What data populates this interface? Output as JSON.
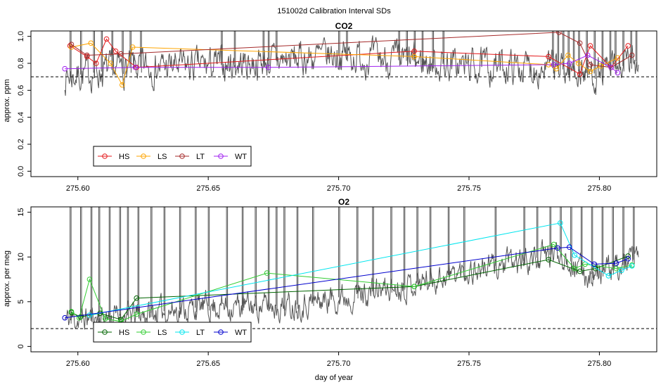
{
  "figure": {
    "suptitle": "151002d   Calibration Interval SDs",
    "xlabel": "day of year"
  },
  "chart_data": [
    {
      "type": "line",
      "title": "CO2",
      "ylabel": "approx. ppm",
      "xlim": [
        275.582,
        275.822
      ],
      "ylim": [
        -0.04,
        1.04
      ],
      "xticks": [
        "275.60",
        "275.65",
        "275.70",
        "275.75",
        "275.80"
      ],
      "xtick_values": [
        275.6,
        275.65,
        275.7,
        275.75,
        275.8
      ],
      "yticks": [
        "0.0",
        "0.2",
        "0.4",
        "0.6",
        "0.8",
        "1.0"
      ],
      "ytick_values": [
        0.0,
        0.2,
        0.4,
        0.6,
        0.8,
        1.0
      ],
      "threshold": 0.7,
      "legend_position": "bottom-left",
      "background_trace": {
        "color": "#555555",
        "seed": 7,
        "base": [
          [
            275.595,
            0.7
          ],
          [
            275.62,
            0.77
          ],
          [
            275.65,
            0.78
          ],
          [
            275.7,
            0.86
          ],
          [
            275.75,
            0.78
          ],
          [
            275.78,
            0.77
          ],
          [
            275.8,
            0.72
          ],
          [
            275.815,
            0.82
          ]
        ],
        "noise": 0.1,
        "spikes": [
          275.597,
          275.601,
          275.606,
          275.609,
          275.613,
          275.617,
          275.62,
          275.624,
          275.655,
          275.66,
          275.671,
          275.673,
          275.676,
          275.7,
          275.703,
          275.723,
          275.726,
          275.729,
          275.732,
          275.736,
          275.74,
          275.782,
          275.784,
          275.786,
          275.788,
          275.79,
          275.792,
          275.795,
          275.798,
          275.801,
          275.804,
          275.806,
          275.809,
          275.812,
          275.814
        ]
      },
      "series": [
        {
          "name": "HS",
          "color": "#e41a1c",
          "x": [
            275.597,
            275.6035,
            275.607,
            275.611,
            275.6145,
            275.6225,
            275.729,
            275.7805,
            275.7925,
            275.7965,
            275.8045,
            275.811
          ],
          "y": [
            0.93,
            0.85,
            0.8,
            0.98,
            0.89,
            0.77,
            0.89,
            0.85,
            0.72,
            0.93,
            0.77,
            0.93
          ]
        },
        {
          "name": "LS",
          "color": "#ffa500",
          "x": [
            275.5975,
            275.605,
            275.6125,
            275.617,
            275.621,
            275.729,
            275.7805,
            275.7835,
            275.788,
            275.792,
            275.7965,
            275.8005,
            275.807
          ],
          "y": [
            0.92,
            0.95,
            0.8,
            0.64,
            0.92,
            0.85,
            0.79,
            0.76,
            0.86,
            0.8,
            0.74,
            0.78,
            0.84
          ]
        },
        {
          "name": "LT",
          "color": "#a52a2a",
          "x": [
            275.5975,
            275.6035,
            275.6165,
            275.7845,
            275.7925,
            275.7965,
            275.8045,
            275.8125
          ],
          "y": [
            0.94,
            0.86,
            0.87,
            1.03,
            0.95,
            0.79,
            0.77,
            0.86
          ]
        },
        {
          "name": "WT",
          "color": "#a020f0",
          "x": [
            275.595,
            275.622,
            275.673,
            275.7825,
            275.7885,
            275.7955,
            275.8045,
            275.807
          ],
          "y": [
            0.76,
            0.77,
            0.77,
            0.79,
            0.8,
            0.86,
            0.77,
            0.73
          ]
        }
      ]
    },
    {
      "type": "line",
      "title": "O2",
      "ylabel": "approx. per meg",
      "xlim": [
        275.582,
        275.822
      ],
      "ylim": [
        -0.6,
        15.6
      ],
      "xticks": [
        "275.60",
        "275.65",
        "275.70",
        "275.75",
        "275.80"
      ],
      "xtick_values": [
        275.6,
        275.65,
        275.7,
        275.75,
        275.8
      ],
      "yticks": [
        "0",
        "5",
        "10",
        "15"
      ],
      "ytick_values": [
        0,
        5,
        10,
        15
      ],
      "threshold": 2,
      "legend_position": "bottom-left",
      "background_trace": {
        "color": "#555555",
        "seed": 11,
        "base": [
          [
            275.595,
            3.0
          ],
          [
            275.62,
            3.5
          ],
          [
            275.65,
            4.5
          ],
          [
            275.68,
            4.5
          ],
          [
            275.7,
            5.5
          ],
          [
            275.72,
            6.5
          ],
          [
            275.75,
            8.5
          ],
          [
            275.77,
            9.5
          ],
          [
            275.785,
            10.5
          ],
          [
            275.795,
            8.0
          ],
          [
            275.805,
            8.5
          ],
          [
            275.815,
            10.0
          ]
        ],
        "noise": 1.2,
        "spikes": [
          275.597,
          275.601,
          275.605,
          275.608,
          275.612,
          275.616,
          275.619,
          275.623,
          275.628,
          275.633,
          275.639,
          275.645,
          275.65,
          275.657,
          275.663,
          275.668,
          275.673,
          275.676,
          275.679,
          275.684,
          275.69,
          275.7,
          275.707,
          275.713,
          275.72,
          275.725,
          275.73,
          275.735,
          275.742,
          275.748,
          275.76,
          275.771,
          275.776,
          275.781,
          275.785,
          275.789,
          275.793,
          275.797,
          275.801,
          275.805,
          275.809,
          275.813
        ]
      },
      "series": [
        {
          "name": "HS",
          "color": "#006400",
          "x": [
            275.5975,
            275.601,
            275.6085,
            275.6165,
            275.6225,
            275.729,
            275.7805,
            275.7925,
            275.7985,
            275.811
          ],
          "y": [
            3.8,
            3.3,
            3.7,
            3.0,
            5.4,
            6.7,
            9.7,
            8.4,
            8.7,
            10.1
          ]
        },
        {
          "name": "LS",
          "color": "#32cd32",
          "x": [
            275.5975,
            275.6005,
            275.6045,
            275.6105,
            275.6165,
            275.6225,
            275.6725,
            275.729,
            275.7825,
            275.7905,
            275.7945,
            275.8065,
            275.8125
          ],
          "y": [
            3.9,
            3.2,
            7.5,
            3.1,
            2.8,
            3.6,
            8.2,
            6.7,
            11.4,
            8.7,
            9.2,
            8.7,
            9.1
          ]
        },
        {
          "name": "LT",
          "color": "#00e5ee",
          "x": [
            275.6045,
            275.785,
            275.7905,
            275.8035,
            275.8085,
            275.8125
          ],
          "y": [
            3.5,
            13.8,
            10.2,
            7.9,
            8.5,
            9.0
          ]
        },
        {
          "name": "WT",
          "color": "#0000cd",
          "x": [
            275.595,
            275.784,
            275.7885,
            275.798,
            275.8065,
            275.811
          ],
          "y": [
            3.2,
            11.0,
            11.1,
            9.2,
            9.3,
            9.8
          ]
        }
      ]
    }
  ]
}
